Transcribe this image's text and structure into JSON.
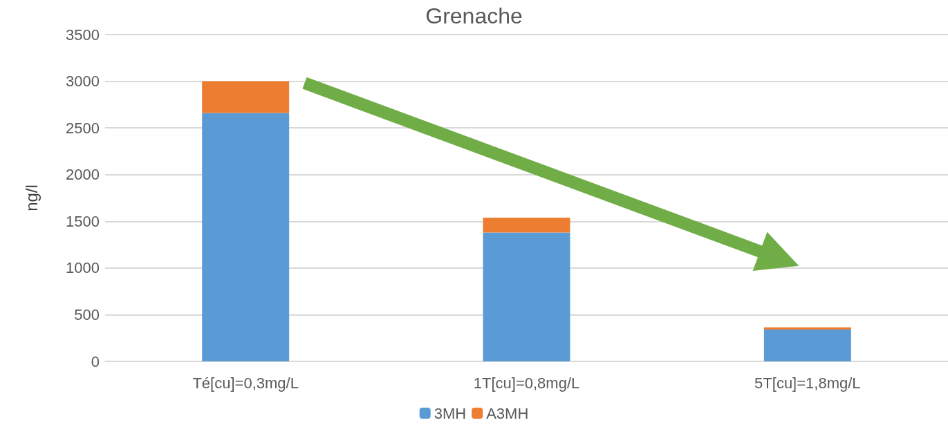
{
  "chart_data": {
    "type": "bar",
    "title": "Grenache",
    "ylabel": "ng/l",
    "categories": [
      "Té[cu]=0,3mg/L",
      "1T[cu]=0,8mg/L",
      "5T[cu]=1,8mg/L"
    ],
    "stacked": true,
    "series": [
      {
        "name": "3MH",
        "color": "#5b9bd5",
        "values": [
          2660,
          1380,
          340
        ]
      },
      {
        "name": "A3MH",
        "color": "#ed7d31",
        "values": [
          340,
          160,
          25
        ]
      }
    ],
    "ylim": [
      0,
      3500
    ],
    "yticks": [
      0,
      500,
      1000,
      1500,
      2000,
      2500,
      3000,
      3500
    ],
    "grid": "y",
    "legend": "bottom"
  }
}
